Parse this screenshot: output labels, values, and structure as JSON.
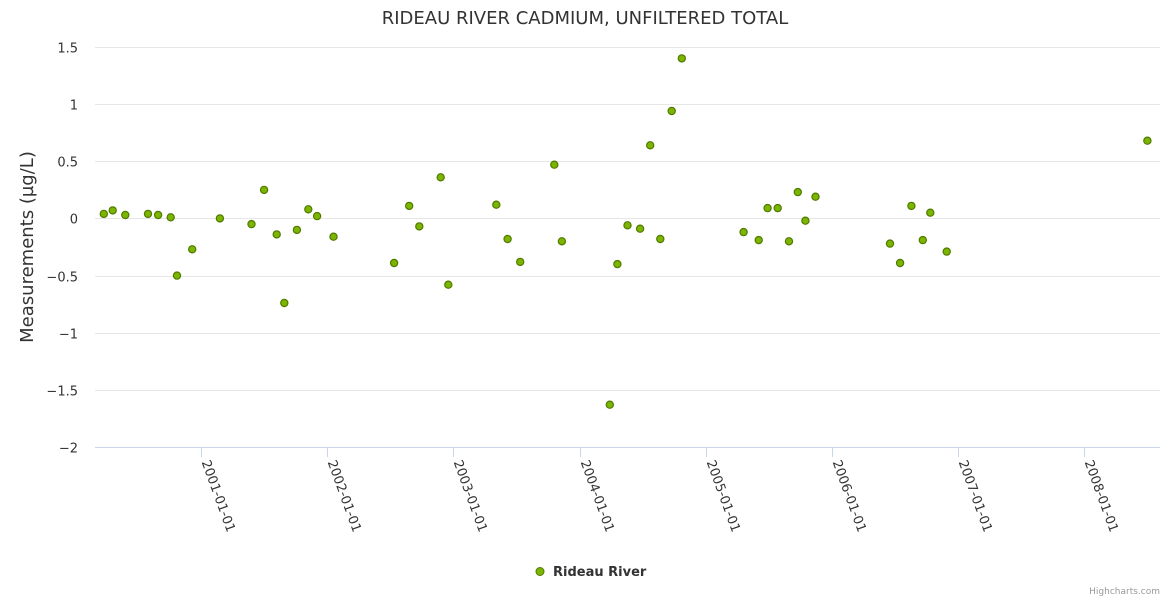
{
  "chart_data": {
    "type": "scatter",
    "title": "RIDEAU RIVER CADMIUM, UNFILTERED TOTAL",
    "xlabel": "",
    "ylabel": "Measurements (µg/L)",
    "ylim": [
      -2,
      1.5
    ],
    "yticks": [
      1.5,
      1,
      0.5,
      0,
      -0.5,
      -1,
      -1.5,
      -2
    ],
    "ytick_labels": [
      "1.5",
      "1",
      "0.5",
      "0",
      "−0.5",
      "−1",
      "−1.5",
      "−2"
    ],
    "xlim_years": [
      2000.16,
      2008.6
    ],
    "xticks": [
      2001,
      2002,
      2003,
      2004,
      2005,
      2006,
      2007,
      2008
    ],
    "xtick_labels": [
      "2001-01-01",
      "2002-01-01",
      "2003-01-01",
      "2004-01-01",
      "2005-01-01",
      "2006-01-01",
      "2007-01-01",
      "2008-01-01"
    ],
    "grid": true,
    "legend_position": "bottom-center",
    "series": [
      {
        "name": "Rideau River",
        "color": "#7cb500",
        "x": [
          2000.23,
          2000.3,
          2000.4,
          2000.58,
          2000.66,
          2000.76,
          2000.81,
          2000.93,
          2001.15,
          2001.4,
          2001.5,
          2001.6,
          2001.66,
          2001.76,
          2001.85,
          2001.92,
          2002.05,
          2002.53,
          2002.65,
          2002.73,
          2002.9,
          2002.96,
          2003.34,
          2003.43,
          2003.53,
          2003.8,
          2003.86,
          2004.24,
          2004.3,
          2004.38,
          2004.48,
          2004.56,
          2004.64,
          2004.73,
          2004.81,
          2005.3,
          2005.42,
          2005.49,
          2005.57,
          2005.66,
          2005.73,
          2005.79,
          2005.87,
          2006.46,
          2006.54,
          2006.63,
          2006.72,
          2006.78,
          2006.91,
          2008.5
        ],
        "values": [
          0.04,
          0.07,
          0.03,
          0.04,
          0.03,
          0.01,
          -0.5,
          -0.27,
          0.0,
          -0.05,
          0.25,
          -0.14,
          -0.74,
          -0.1,
          0.08,
          0.02,
          -0.16,
          -0.39,
          0.11,
          -0.07,
          0.36,
          -0.58,
          0.12,
          -0.18,
          -0.38,
          0.47,
          -0.2,
          -1.63,
          -0.4,
          -0.06,
          -0.09,
          0.64,
          -0.18,
          0.94,
          1.4,
          -0.12,
          -0.19,
          0.09,
          0.09,
          -0.2,
          0.23,
          -0.02,
          0.19,
          -0.22,
          -0.39,
          0.11,
          -0.19,
          0.05,
          -0.29,
          0.68
        ]
      }
    ]
  },
  "legend": {
    "label": "Rideau River"
  },
  "credits": "Highcharts.com"
}
